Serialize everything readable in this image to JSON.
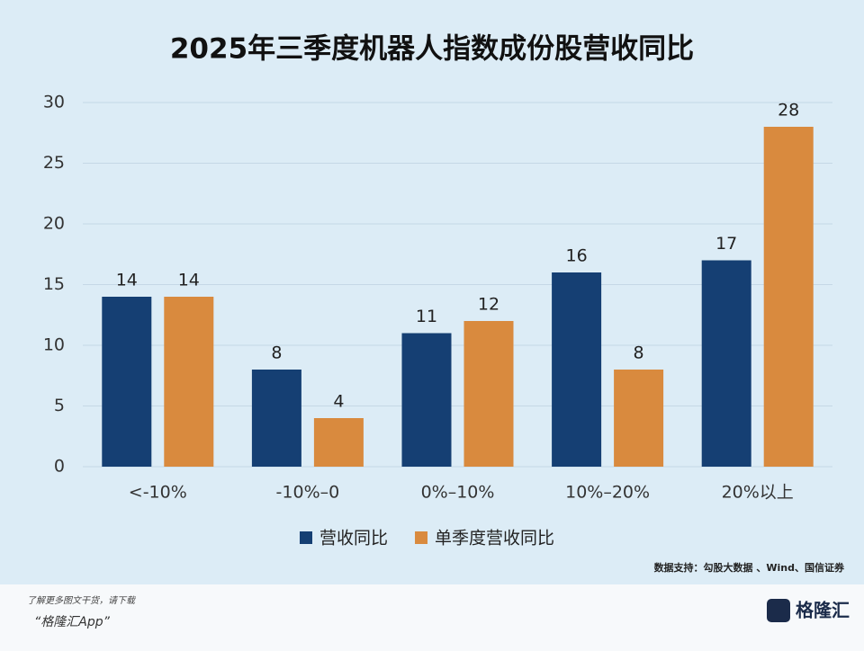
{
  "chart_data": {
    "type": "bar",
    "title": "2025年三季度机器人指数成份股营收同比",
    "categories": [
      "<-10%",
      "-10%–0",
      "0%–10%",
      "10%–20%",
      "20%以上"
    ],
    "series": [
      {
        "name": "营收同比",
        "color": "#153f73",
        "values": [
          14,
          8,
          11,
          16,
          17
        ]
      },
      {
        "name": "单季度营收同比",
        "color": "#d98a3e",
        "values": [
          14,
          4,
          12,
          8,
          28
        ]
      }
    ],
    "ylim": [
      0,
      30
    ],
    "yticks": [
      0,
      5,
      10,
      15,
      20,
      25,
      30
    ],
    "grid": true,
    "legend": "bottom",
    "source": "数据支持：勾股大数据 、Wind、国信证券"
  },
  "footer": {
    "line1": "了解更多图文干货，请下载",
    "line2": "“格隆汇App”",
    "logo": "格隆汇"
  }
}
